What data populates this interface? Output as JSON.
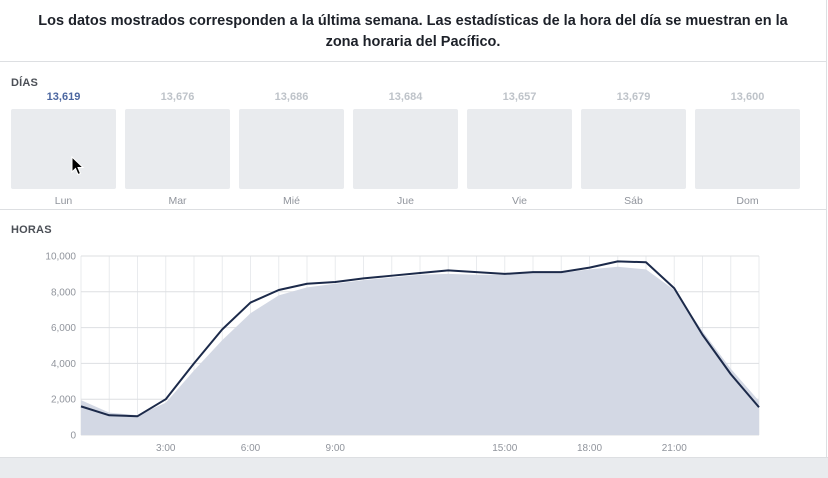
{
  "notice": "Los datos mostrados corresponden a la última semana. Las estadísticas de la hora del día se muestran en la zona horaria del Pacífico.",
  "days": {
    "label": "DÍAS",
    "items": [
      {
        "name": "Lun",
        "value": "13,619",
        "active": true
      },
      {
        "name": "Mar",
        "value": "13,676",
        "active": false
      },
      {
        "name": "Mié",
        "value": "13,686",
        "active": false
      },
      {
        "name": "Jue",
        "value": "13,684",
        "active": false
      },
      {
        "name": "Vie",
        "value": "13,657",
        "active": false
      },
      {
        "name": "Sáb",
        "value": "13,679",
        "active": false
      },
      {
        "name": "Dom",
        "value": "13,600",
        "active": false
      }
    ]
  },
  "hours": {
    "label": "HORAS"
  },
  "colors": {
    "line": "#1c2a4a",
    "area": "#d3d8e4",
    "accent": "#4b66a0",
    "box": "#e9ebee"
  },
  "chart_data": {
    "type": "line",
    "title": "",
    "xlabel": "",
    "ylabel": "",
    "xlim": [
      0,
      24
    ],
    "ylim": [
      0,
      10000
    ],
    "yticks": [
      "0",
      "2,000",
      "4,000",
      "6,000",
      "8,000",
      "10,000"
    ],
    "xtick_labels": [
      {
        "x": 3,
        "label": "3:00"
      },
      {
        "x": 6,
        "label": "6:00"
      },
      {
        "x": 9,
        "label": "9:00"
      },
      {
        "x": 15,
        "label": "15:00"
      },
      {
        "x": 18,
        "label": "18:00"
      },
      {
        "x": 21,
        "label": "21:00"
      }
    ],
    "grid": true,
    "x": [
      0,
      1,
      2,
      3,
      4,
      5,
      6,
      7,
      8,
      9,
      10,
      11,
      12,
      13,
      14,
      15,
      16,
      17,
      18,
      19,
      20,
      21,
      22,
      23,
      24
    ],
    "series": [
      {
        "type": "line",
        "values": [
          1600,
          1100,
          1050,
          2000,
          4000,
          5900,
          7400,
          8100,
          8450,
          8550,
          8750,
          8900,
          9050,
          9200,
          9100,
          9000,
          9100,
          9100,
          9350,
          9700,
          9650,
          8200,
          5600,
          3400,
          1550
        ]
      },
      {
        "type": "area",
        "values": [
          1950,
          1250,
          1100,
          1800,
          3600,
          5300,
          6800,
          7800,
          8250,
          8450,
          8650,
          8800,
          8950,
          9000,
          8950,
          8950,
          9050,
          9050,
          9250,
          9400,
          9250,
          8100,
          5800,
          3700,
          1900
        ]
      }
    ]
  }
}
